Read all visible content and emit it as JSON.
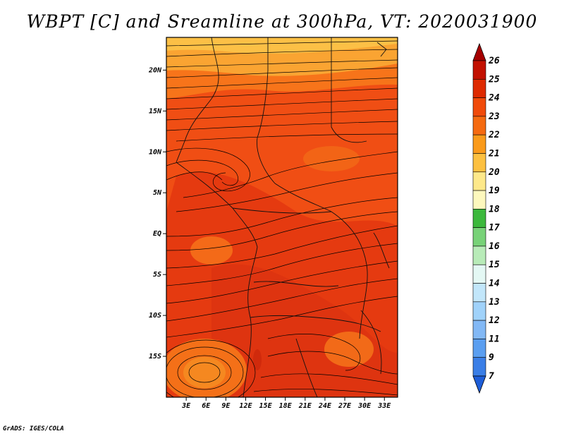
{
  "title": "WBPT [C] and Sreamline at 300hPa, VT: 2020031900",
  "credit": "GrADS: IGES/COLA",
  "map": {
    "lon_range": [
      0,
      35
    ],
    "lat_range": [
      -20,
      24
    ],
    "lat_ticks": [
      {
        "value": 20,
        "label": "20N"
      },
      {
        "value": 15,
        "label": "15N"
      },
      {
        "value": 10,
        "label": "10N"
      },
      {
        "value": 5,
        "label": "5N"
      },
      {
        "value": 0,
        "label": "EQ"
      },
      {
        "value": -5,
        "label": "5S"
      },
      {
        "value": -10,
        "label": "10S"
      },
      {
        "value": -15,
        "label": "15S"
      }
    ],
    "lon_ticks": [
      {
        "value": 3,
        "label": "3E"
      },
      {
        "value": 6,
        "label": "6E"
      },
      {
        "value": 9,
        "label": "9E"
      },
      {
        "value": 12,
        "label": "12E"
      },
      {
        "value": 15,
        "label": "15E"
      },
      {
        "value": 18,
        "label": "18E"
      },
      {
        "value": 21,
        "label": "21E"
      },
      {
        "value": 24,
        "label": "24E"
      },
      {
        "value": 27,
        "label": "27E"
      },
      {
        "value": 30,
        "label": "30E"
      },
      {
        "value": 33,
        "label": "33E"
      }
    ]
  },
  "colorbar": {
    "labels": [
      "26",
      "25",
      "24",
      "23",
      "22",
      "21",
      "20",
      "19",
      "18",
      "17",
      "16",
      "15",
      "14",
      "13",
      "12",
      "11",
      "9",
      "7"
    ],
    "colors": [
      "#a50000",
      "#c21000",
      "#de2a00",
      "#f04a0a",
      "#f56a10",
      "#fa9a1a",
      "#fcc040",
      "#fde88a",
      "#fdf8bd",
      "#3cb83c",
      "#78d278",
      "#b8ebb8",
      "#e4f8f4",
      "#c2e6fa",
      "#a0d2fa",
      "#82b8f5",
      "#5a9ef0",
      "#3a7ee6",
      "#1e5ed8"
    ]
  },
  "field_colors": {
    "dark_red": "#e2320c",
    "red_orange": "#f04e14",
    "orange": "#f7741a",
    "light_orange": "#faa432",
    "yellow_orange": "#fcc046"
  }
}
